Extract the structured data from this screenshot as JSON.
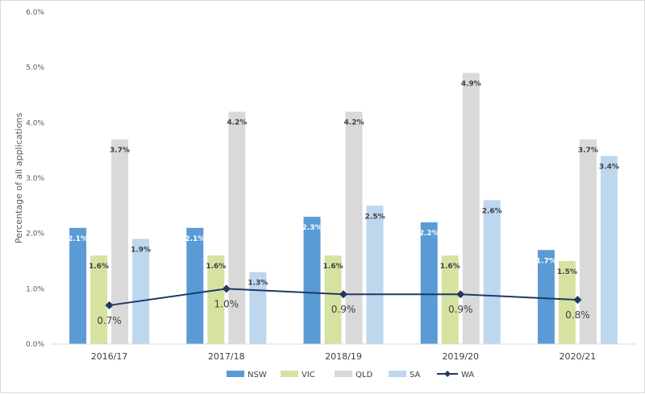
{
  "chart_data": {
    "type": "bar",
    "title": "",
    "xlabel": "",
    "ylabel": "Percentage of all applications",
    "ylim": [
      0,
      6.0
    ],
    "yticks": [
      "0.0%",
      "1.0%",
      "2.0%",
      "3.0%",
      "4.0%",
      "5.0%",
      "6.0%"
    ],
    "grid": false,
    "legend_position": "bottom",
    "categories": [
      "2016/17",
      "2017/18",
      "2018/19",
      "2019/20",
      "2020/21"
    ],
    "series": [
      {
        "name": "NSW",
        "kind": "bar",
        "color": "#5b9bd5",
        "values": [
          2.1,
          2.1,
          2.3,
          2.2,
          1.7
        ],
        "labels": [
          "2.1%",
          "2.1%",
          "2.3%",
          "2.2%",
          "1.7%"
        ]
      },
      {
        "name": "VIC",
        "kind": "bar",
        "color": "#d6e3a0",
        "values": [
          1.6,
          1.6,
          1.6,
          1.6,
          1.5
        ],
        "labels": [
          "1.6%",
          "1.6%",
          "1.6%",
          "1.6%",
          "1.5%"
        ]
      },
      {
        "name": "QLD",
        "kind": "bar",
        "color": "#d9d9d9",
        "values": [
          3.7,
          4.2,
          4.2,
          4.9,
          3.7
        ],
        "labels": [
          "3.7%",
          "4.2%",
          "4.2%",
          "4.9%",
          "3.7%"
        ]
      },
      {
        "name": "SA",
        "kind": "bar",
        "color": "#bdd7ee",
        "values": [
          1.9,
          1.3,
          2.5,
          2.6,
          3.4
        ],
        "labels": [
          "1.9%",
          "1.3%",
          "2.5%",
          "2.6%",
          "3.4%"
        ]
      },
      {
        "name": "WA",
        "kind": "line",
        "color": "#203864",
        "values": [
          0.7,
          1.0,
          0.9,
          0.9,
          0.8
        ],
        "labels": [
          "0.7%",
          "1.0%",
          "0.9%",
          "0.9%",
          "0.8%"
        ]
      }
    ]
  }
}
